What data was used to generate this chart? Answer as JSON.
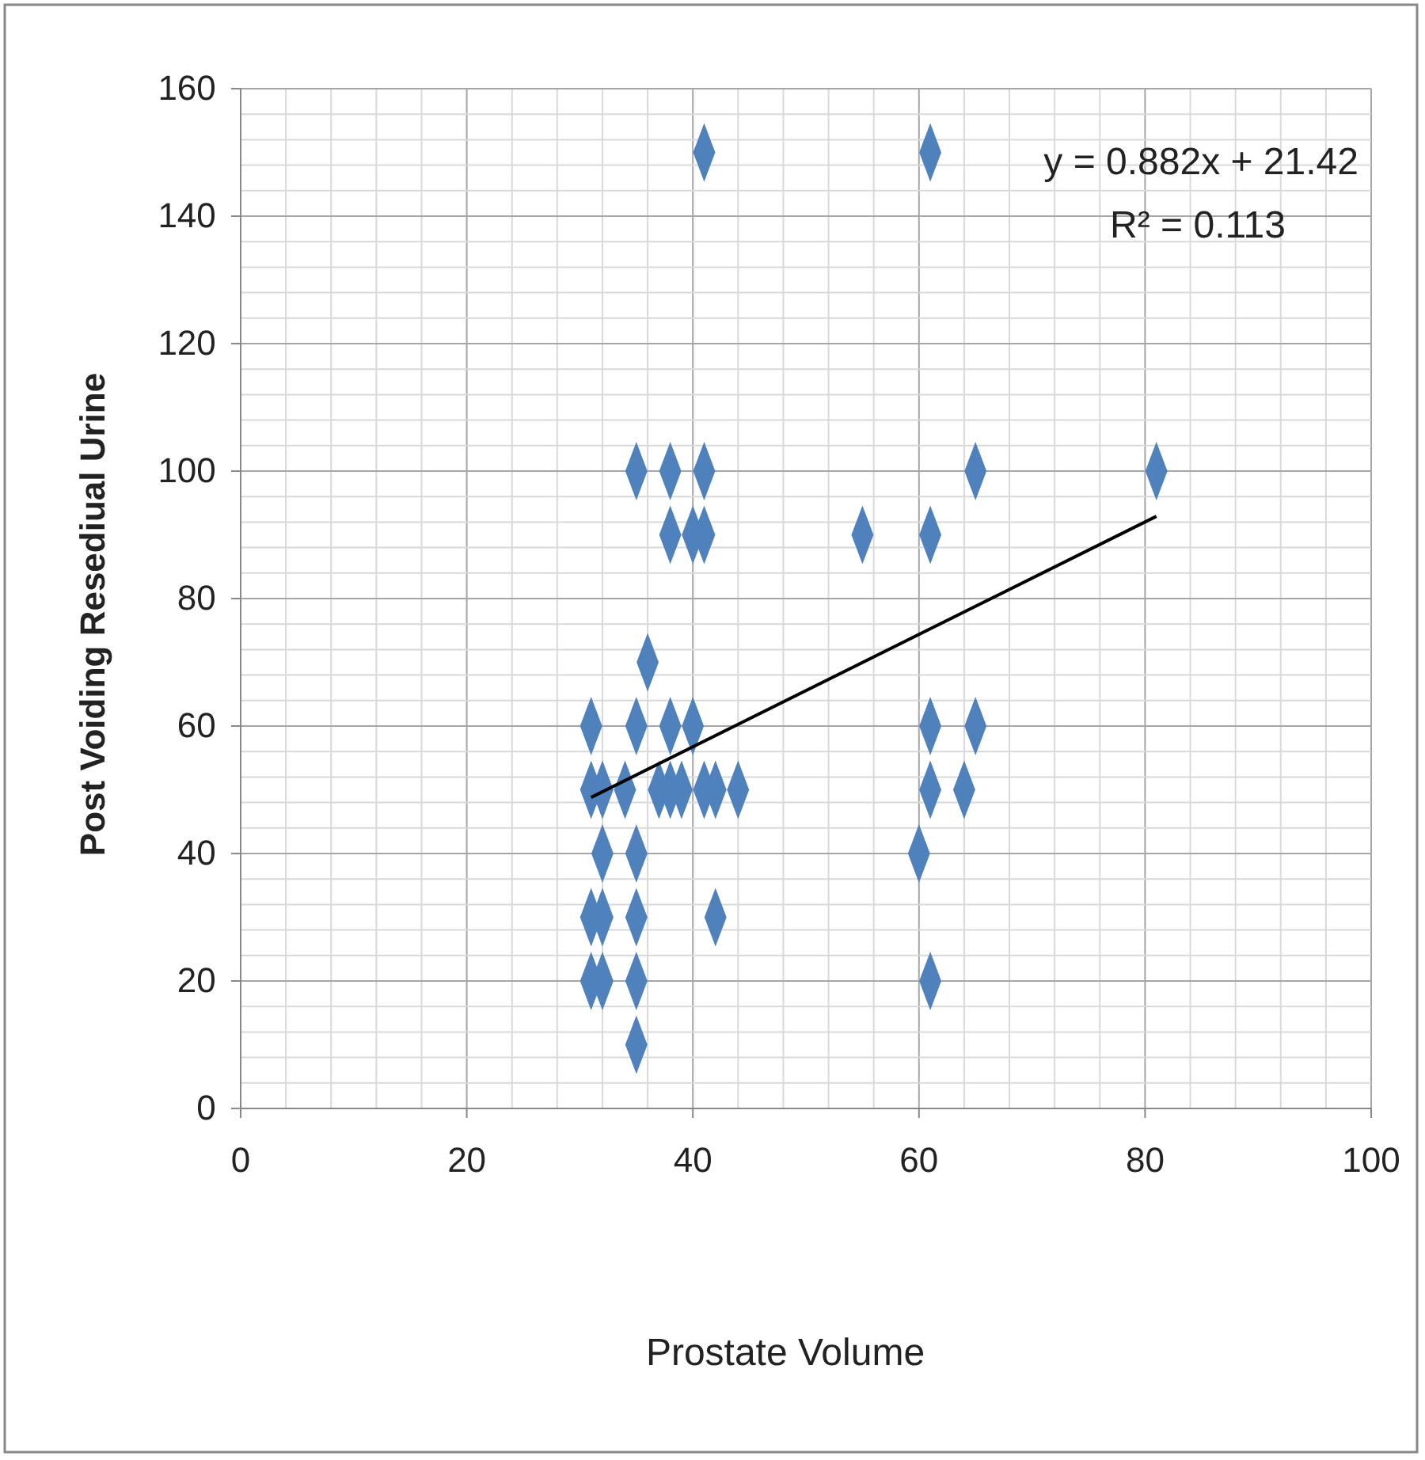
{
  "chart_data": {
    "type": "scatter",
    "xlabel": "Prostate Volume",
    "ylabel": "Post Voiding Resediual Urine",
    "xlim": [
      0,
      100
    ],
    "xticks": [
      0,
      20,
      40,
      60,
      80,
      100
    ],
    "ylim": [
      0,
      160
    ],
    "yticks": [
      0,
      20,
      40,
      60,
      80,
      100,
      120,
      140,
      160
    ],
    "grid": true,
    "annotations": [
      "y = 0.882x + 21.42",
      "R² = 0.113"
    ],
    "series": [
      {
        "marker": "diamond",
        "color": "#4f81bd",
        "x": [
          41,
          61,
          35,
          38,
          41,
          38,
          40,
          41,
          55,
          61,
          65,
          81,
          36,
          31,
          35,
          38,
          40,
          61,
          65,
          31,
          32,
          34,
          37,
          38,
          39,
          41,
          42,
          44,
          61,
          64,
          32,
          35,
          60,
          31,
          32,
          35,
          42,
          31,
          32,
          35,
          61,
          35
        ],
        "values": [
          150,
          150,
          100,
          100,
          100,
          90,
          90,
          90,
          90,
          90,
          100,
          100,
          70,
          60,
          60,
          60,
          60,
          60,
          60,
          50,
          50,
          50,
          50,
          50,
          50,
          50,
          50,
          50,
          50,
          50,
          40,
          40,
          40,
          30,
          30,
          30,
          30,
          20,
          20,
          20,
          20,
          10
        ]
      },
      {
        "type": "line",
        "color": "#000000",
        "line_style": "solid",
        "x": [
          31,
          81
        ],
        "values": [
          48.8,
          92.9
        ]
      }
    ]
  }
}
